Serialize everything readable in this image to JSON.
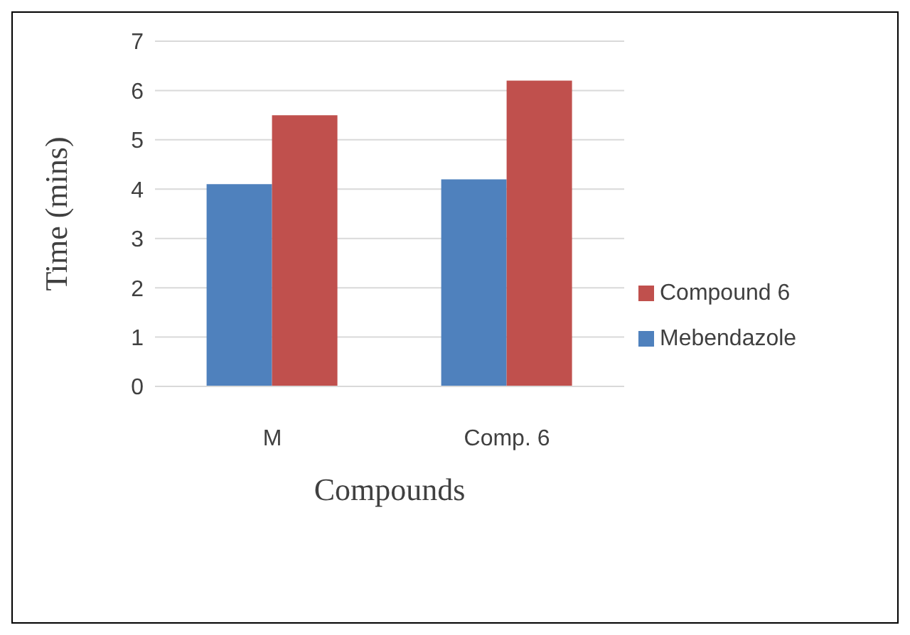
{
  "chart_data": {
    "type": "bar",
    "xlabel": "Compounds",
    "ylabel": "Time (mins)",
    "categories": [
      "M",
      "Comp. 6"
    ],
    "series": [
      {
        "name": "Mebendazole",
        "color": "#4f81bd",
        "values": [
          4.1,
          4.2
        ]
      },
      {
        "name": "Compound 6",
        "color": "#c0504d",
        "values": [
          5.5,
          6.2
        ]
      }
    ],
    "ylim": [
      0,
      7
    ],
    "yticks": [
      0,
      1,
      2,
      3,
      4,
      5,
      6,
      7
    ],
    "grid": "y",
    "legend": "right"
  }
}
